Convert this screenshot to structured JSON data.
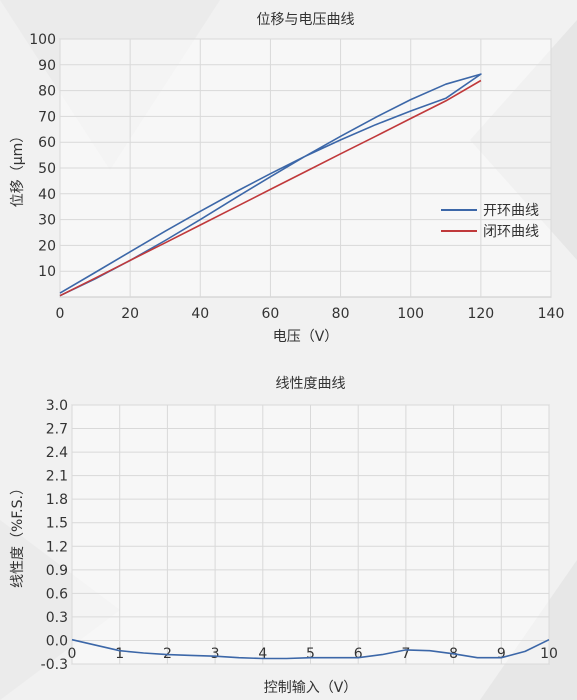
{
  "chart_data": [
    {
      "type": "line",
      "title": "位移与电压曲线",
      "xlabel": "电压（V）",
      "ylabel": "位移（μm）",
      "xlim": [
        0,
        140
      ],
      "ylim": [
        0,
        100
      ],
      "xticks": [
        "0",
        "20",
        "40",
        "60",
        "80",
        "100",
        "120",
        "140"
      ],
      "yticks": [
        "10",
        "20",
        "30",
        "40",
        "50",
        "60",
        "70",
        "80",
        "90",
        "100"
      ],
      "grid": true,
      "legend_position": "right",
      "series": [
        {
          "name": "开环曲线",
          "color": "#3c67a8",
          "x": [
            0,
            10,
            20,
            30,
            40,
            50,
            60,
            70,
            80,
            90,
            100,
            110,
            120,
            110,
            100,
            90,
            80,
            70,
            60,
            50,
            40,
            30,
            20,
            10,
            0
          ],
          "y": [
            1.5,
            9.5,
            17.5,
            25.5,
            33.2,
            40.7,
            47.8,
            54.6,
            60.9,
            66.8,
            72.1,
            77.0,
            86.4,
            82.5,
            76.5,
            69.6,
            62.3,
            54.6,
            46.6,
            38.4,
            30.0,
            21.9,
            14.2,
            7.0,
            0.5
          ]
        },
        {
          "name": "闭环曲线",
          "color": "#c0393b",
          "x": [
            0,
            10,
            20,
            30,
            40,
            50,
            60,
            70,
            80,
            90,
            100,
            110,
            120
          ],
          "y": [
            0.5,
            7.3,
            14.2,
            21.0,
            27.9,
            34.8,
            41.7,
            48.6,
            55.5,
            62.3,
            69.2,
            76.0,
            83.9
          ]
        }
      ]
    },
    {
      "type": "line",
      "title": "线性度曲线",
      "xlabel": "控制输入（V）",
      "ylabel": "线性度（%F.S.）",
      "xlim": [
        0,
        10
      ],
      "ylim": [
        -0.3,
        3.0
      ],
      "xticks": [
        "0",
        "1",
        "2",
        "3",
        "4",
        "5",
        "6",
        "7",
        "8",
        "9",
        "10"
      ],
      "yticks": [
        "-0.3",
        "0.0",
        "0.3",
        "0.6",
        "0.9",
        "1.2",
        "1.5",
        "1.8",
        "2.1",
        "2.4",
        "2.7",
        "3.0"
      ],
      "grid": true,
      "series": [
        {
          "color": "#3c67a8",
          "x": [
            0,
            0.5,
            1,
            1.5,
            2,
            2.5,
            3,
            3.5,
            4,
            4.5,
            5,
            5.5,
            6,
            6.5,
            7,
            7.5,
            8,
            8.5,
            9,
            9.5,
            10
          ],
          "y": [
            0.01,
            -0.06,
            -0.13,
            -0.16,
            -0.18,
            -0.19,
            -0.2,
            -0.22,
            -0.23,
            -0.23,
            -0.22,
            -0.22,
            -0.22,
            -0.18,
            -0.12,
            -0.13,
            -0.17,
            -0.22,
            -0.22,
            -0.14,
            0.01
          ]
        }
      ]
    }
  ]
}
